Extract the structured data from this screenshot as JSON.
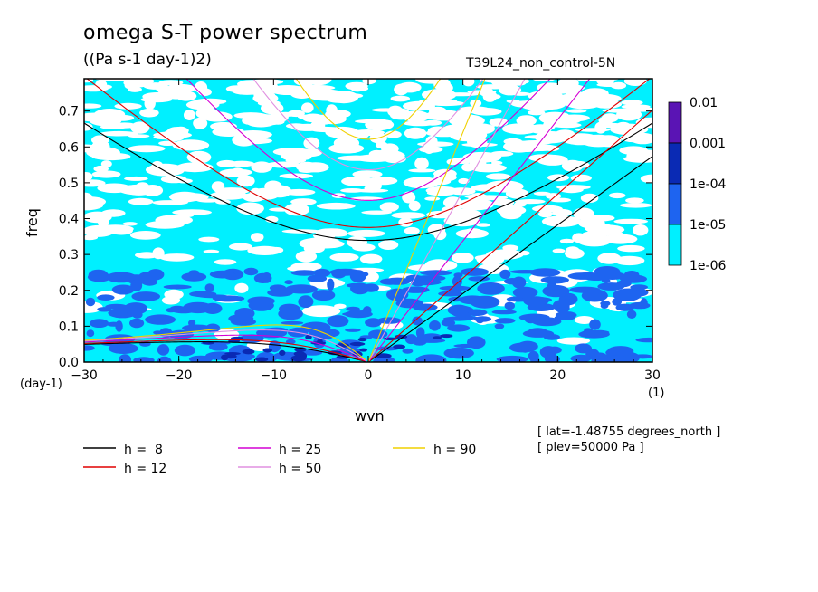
{
  "chart_data": {
    "type": "heatmap",
    "title": "omega S-T power spectrum",
    "subtitle": "((Pa s-1 day-1)2)",
    "case_name": "T39L24_non_control-5N",
    "xlabel": "wvn",
    "ylabel": "freq",
    "y_unit": "(day-1)",
    "x_unit": "(1)",
    "xlim": [
      -30,
      30
    ],
    "ylim": [
      0,
      0.79
    ],
    "x_ticks": [
      "-30",
      "-20",
      "-10",
      "0",
      "10",
      "20",
      "30"
    ],
    "y_ticks": [
      "0.0",
      "0.1",
      "0.2",
      "0.3",
      "0.4",
      "0.5",
      "0.6",
      "0.7"
    ],
    "colorbar": {
      "levels": [
        "0.01",
        "0.001",
        "1e-04",
        "1e-05",
        "1e-06"
      ],
      "colors": [
        "#5a14b4",
        "#0a2ab4",
        "#1e64f0",
        "#00f0ff"
      ]
    },
    "dispersion_curves": [
      {
        "label": "h =  8",
        "color": "#000000"
      },
      {
        "label": "h = 12",
        "color": "#e00000"
      },
      {
        "label": "h = 25",
        "color": "#d400d4"
      },
      {
        "label": "h = 50",
        "color": "#e090e0"
      },
      {
        "label": "h = 90",
        "color": "#f0d000"
      }
    ],
    "notes": [
      "[ lat=-1.48755 degrees_north ]",
      "[ plev=50000 Pa ]"
    ]
  }
}
